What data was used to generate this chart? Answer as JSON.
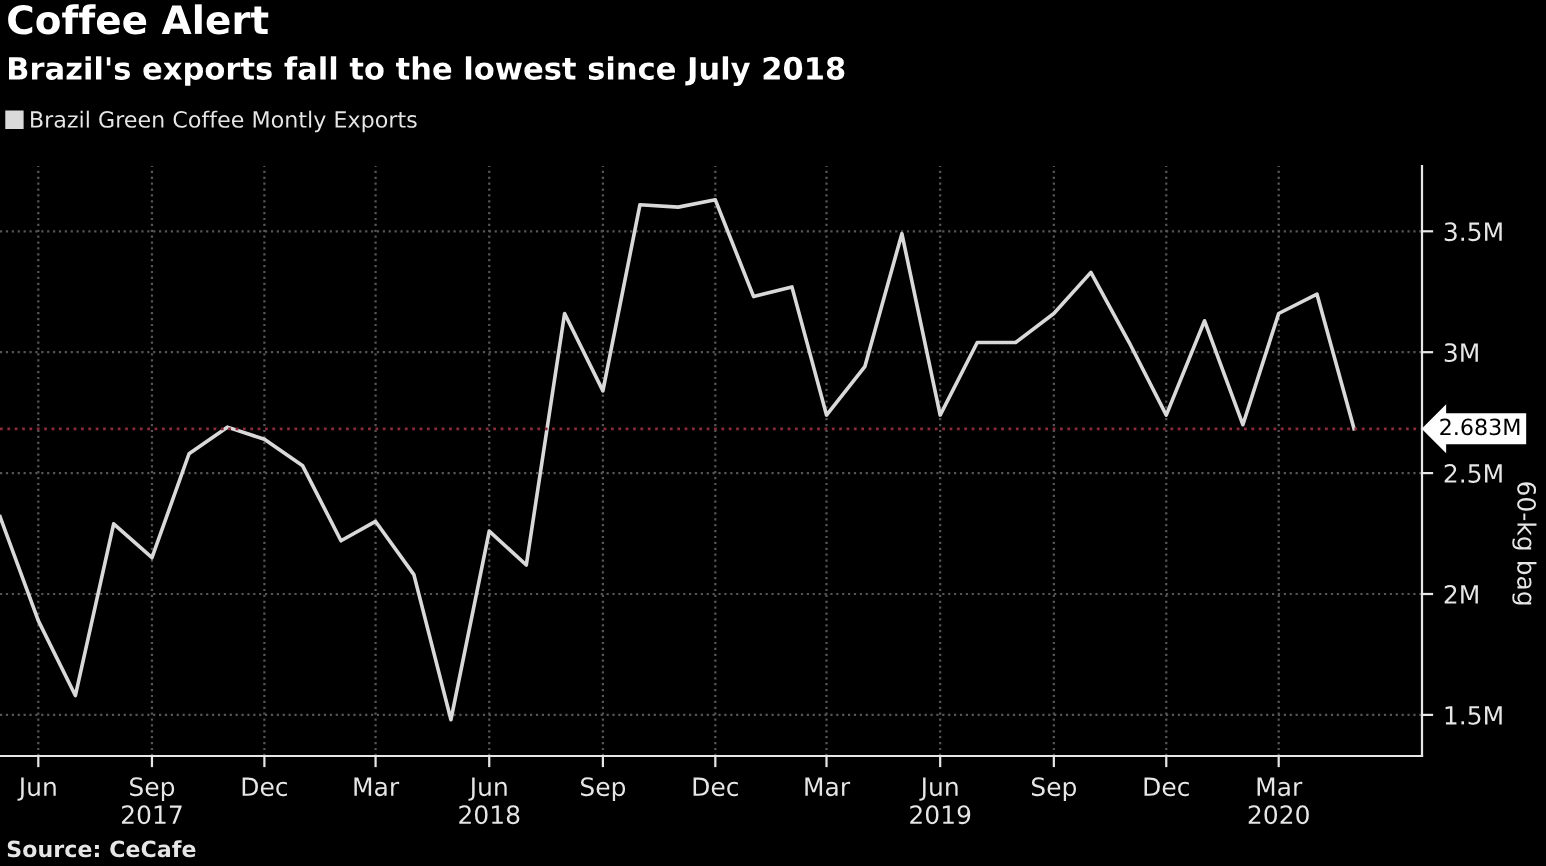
{
  "chart_data": {
    "type": "line",
    "title": "Coffee Alert",
    "subtitle": "Brazil's exports fall to the lowest since July 2018",
    "ylabel": "60-kg bag",
    "x": [
      "2017-05",
      "2017-06",
      "2017-07",
      "2017-08",
      "2017-09",
      "2017-10",
      "2017-11",
      "2017-12",
      "2018-01",
      "2018-02",
      "2018-03",
      "2018-04",
      "2018-05",
      "2018-06",
      "2018-07",
      "2018-08",
      "2018-09",
      "2018-10",
      "2018-11",
      "2018-12",
      "2019-01",
      "2019-02",
      "2019-03",
      "2019-04",
      "2019-05",
      "2019-06",
      "2019-07",
      "2019-08",
      "2019-09",
      "2019-10",
      "2019-11",
      "2019-12",
      "2020-01",
      "2020-02",
      "2020-03",
      "2020-04",
      "2020-05"
    ],
    "series": [
      {
        "name": "Brazil Green Coffee Montly Exports",
        "color": "#d9d9d9",
        "values": [
          2.32,
          1.89,
          1.58,
          2.29,
          2.15,
          2.58,
          2.69,
          2.64,
          2.53,
          2.22,
          2.3,
          2.08,
          1.48,
          2.26,
          2.12,
          3.16,
          2.84,
          3.61,
          3.6,
          3.63,
          3.23,
          3.27,
          2.74,
          2.94,
          3.49,
          2.74,
          3.04,
          3.04,
          3.16,
          3.33,
          3.04,
          2.74,
          3.13,
          2.7,
          3.16,
          3.24,
          2.683
        ]
      }
    ],
    "ylim": [
      1.33,
      3.77
    ],
    "yticks": [
      {
        "value": 1.5,
        "label": "1.5M"
      },
      {
        "value": 2,
        "label": "2M"
      },
      {
        "value": 2.5,
        "label": "2.5M"
      },
      {
        "value": 3,
        "label": "3M"
      },
      {
        "value": 3.5,
        "label": "3.5M"
      }
    ],
    "xlim": [
      "2017-05-01",
      "2020-06-25"
    ],
    "xticks": [
      {
        "value": "2017-06-01",
        "label": "Jun"
      },
      {
        "value": "2017-09-01",
        "label": "Sep\n2017"
      },
      {
        "value": "2017-12-01",
        "label": "Dec"
      },
      {
        "value": "2018-03-01",
        "label": "Mar"
      },
      {
        "value": "2018-06-01",
        "label": "Jun\n2018"
      },
      {
        "value": "2018-09-01",
        "label": "Sep"
      },
      {
        "value": "2018-12-01",
        "label": "Dec"
      },
      {
        "value": "2019-03-01",
        "label": "Mar"
      },
      {
        "value": "2019-06-01",
        "label": "Jun\n2019"
      },
      {
        "value": "2019-09-01",
        "label": "Sep"
      },
      {
        "value": "2019-12-01",
        "label": "Dec"
      },
      {
        "value": "2020-03-01",
        "label": "Mar\n2020"
      }
    ],
    "ref_lines": [
      {
        "axis": "y",
        "value": 2.683,
        "label": "2.683M",
        "color": "#8a2a3a",
        "line_style": "dotted"
      }
    ],
    "grid": true,
    "legend": "top left",
    "marker": "none",
    "line_style": "solid",
    "annotations": [
      "Source: CeCafe"
    ]
  }
}
